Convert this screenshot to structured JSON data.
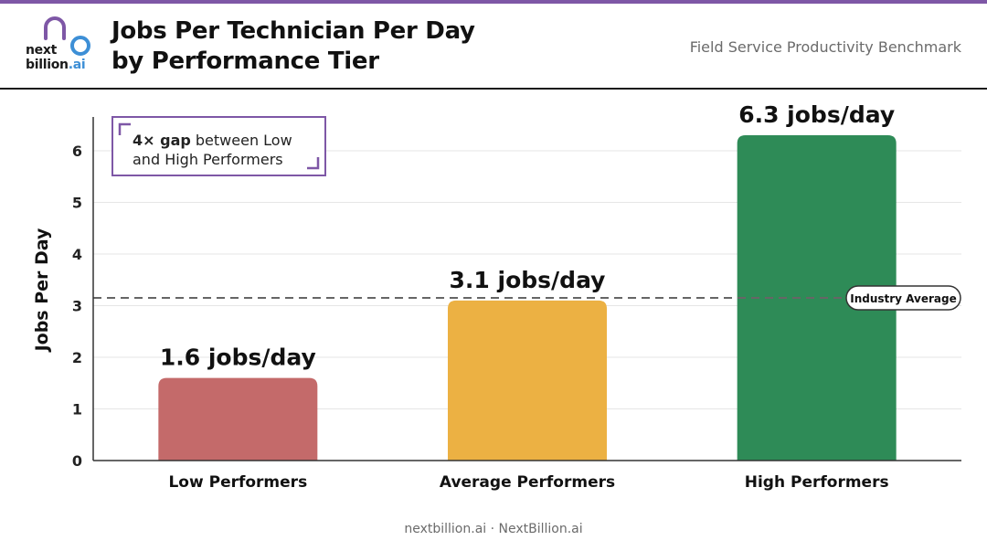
{
  "header": {
    "logo_line1": "next",
    "logo_line2a": "billion",
    "logo_line2b": ".ai",
    "title_line1": "Jobs Per Technician Per Day",
    "title_line2": "by Performance Tier",
    "subtitle": "Field Service Productivity Benchmark"
  },
  "footer": {
    "text": "nextbillion.ai · NextBillion.ai"
  },
  "colors": {
    "accent": "#7e57a6",
    "low": "#c46a6a",
    "average": "#ecb143",
    "high": "#2e8b57",
    "grid": "#e6e6e6",
    "axis": "#333333",
    "reference": "#666666"
  },
  "chart_data": {
    "type": "bar",
    "title": "Jobs Per Technician Per Day by Performance Tier",
    "ylabel": "Jobs Per Day",
    "xlabel": "",
    "ylim": [
      0,
      6.6
    ],
    "yticks": [
      0,
      1,
      2,
      3,
      4,
      5,
      6
    ],
    "grid": true,
    "categories": [
      "Low Performers",
      "Average Performers",
      "High Performers"
    ],
    "values": [
      1.6,
      3.1,
      6.3
    ],
    "data_labels": [
      "1.6 jobs/day",
      "3.1 jobs/day",
      "6.3 jobs/day"
    ],
    "bar_colors": [
      "#c46a6a",
      "#ecb143",
      "#2e8b57"
    ],
    "reference_line": {
      "value": 3.15,
      "label": "Industry Average"
    },
    "annotation": {
      "bold": "4× gap",
      "rest_line1": " between Low",
      "line2": "and High Performers"
    }
  }
}
